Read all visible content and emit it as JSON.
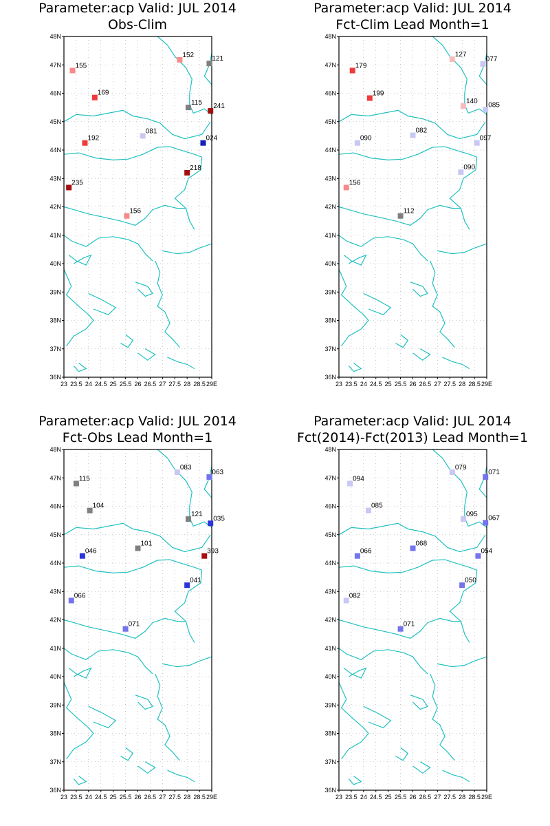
{
  "panels": [
    {
      "title_line1": "Parameter:acp Valid: JUL 2014",
      "title_line2": "Obs-Clim",
      "stations": [
        {
          "lon": 23.35,
          "lat": 46.8,
          "label": "155",
          "color": "#f88a8a"
        },
        {
          "lon": 24.25,
          "lat": 45.85,
          "label": "169",
          "color": "#ee3b3b"
        },
        {
          "lon": 23.85,
          "lat": 44.25,
          "label": "192",
          "color": "#ee3b3b"
        },
        {
          "lon": 23.2,
          "lat": 42.68,
          "label": "235",
          "color": "#a50e0e"
        },
        {
          "lon": 25.55,
          "lat": 41.68,
          "label": "156",
          "color": "#f88a8a"
        },
        {
          "lon": 26.2,
          "lat": 44.5,
          "label": "081",
          "color": "#c8c8f4"
        },
        {
          "lon": 27.7,
          "lat": 47.18,
          "label": "152",
          "color": "#f88a8a"
        },
        {
          "lon": 28.05,
          "lat": 45.5,
          "label": "115",
          "color": "#808080"
        },
        {
          "lon": 28.9,
          "lat": 47.05,
          "label": "121",
          "color": "#808080"
        },
        {
          "lon": 28.95,
          "lat": 45.38,
          "label": "241",
          "color": "#a50e0e"
        },
        {
          "lon": 28.65,
          "lat": 44.25,
          "label": "024",
          "color": "#1420b4"
        },
        {
          "lon": 28.0,
          "lat": 43.2,
          "label": "218",
          "color": "#a50e0e"
        }
      ]
    },
    {
      "title_line1": "Parameter:acp Valid: JUL 2014",
      "title_line2": "Fct-Clim Lead Month=1",
      "stations": [
        {
          "lon": 23.55,
          "lat": 46.8,
          "label": "179",
          "color": "#ee3b3b"
        },
        {
          "lon": 24.25,
          "lat": 45.83,
          "label": "199",
          "color": "#ee3b3b"
        },
        {
          "lon": 23.75,
          "lat": 44.25,
          "label": "090",
          "color": "#c8c8f4"
        },
        {
          "lon": 26.0,
          "lat": 44.52,
          "label": "082",
          "color": "#c8c8f4"
        },
        {
          "lon": 23.3,
          "lat": 42.68,
          "label": "156",
          "color": "#f88a8a"
        },
        {
          "lon": 25.5,
          "lat": 41.68,
          "label": "112",
          "color": "#808080"
        },
        {
          "lon": 27.6,
          "lat": 47.2,
          "label": "127",
          "color": "#f4bcbc"
        },
        {
          "lon": 28.05,
          "lat": 45.55,
          "label": "140",
          "color": "#f4bcbc"
        },
        {
          "lon": 28.85,
          "lat": 47.03,
          "label": "077",
          "color": "#c8c8f4"
        },
        {
          "lon": 28.95,
          "lat": 45.42,
          "label": "085",
          "color": "#c8c8f4"
        },
        {
          "lon": 28.6,
          "lat": 44.25,
          "label": "097",
          "color": "#c8c8f4"
        },
        {
          "lon": 27.95,
          "lat": 43.22,
          "label": "090",
          "color": "#c8c8f4"
        }
      ]
    },
    {
      "title_line1": "Parameter:acp Valid: JUL 2014",
      "title_line2": "Fct-Obs Lead Month=1",
      "stations": [
        {
          "lon": 23.5,
          "lat": 46.8,
          "label": "115",
          "color": "#808080"
        },
        {
          "lon": 24.05,
          "lat": 45.85,
          "label": "104",
          "color": "#808080"
        },
        {
          "lon": 23.75,
          "lat": 44.25,
          "label": "046",
          "color": "#2c36d8"
        },
        {
          "lon": 26.0,
          "lat": 44.52,
          "label": "101",
          "color": "#808080"
        },
        {
          "lon": 23.3,
          "lat": 42.68,
          "label": "066",
          "color": "#7474ec"
        },
        {
          "lon": 25.5,
          "lat": 41.68,
          "label": "071",
          "color": "#7474ec"
        },
        {
          "lon": 27.6,
          "lat": 47.2,
          "label": "083",
          "color": "#c8c8f4"
        },
        {
          "lon": 28.05,
          "lat": 45.55,
          "label": "121",
          "color": "#808080"
        },
        {
          "lon": 28.9,
          "lat": 47.03,
          "label": "063",
          "color": "#7474ec"
        },
        {
          "lon": 28.95,
          "lat": 45.4,
          "label": "035",
          "color": "#2c36d8"
        },
        {
          "lon": 28.7,
          "lat": 44.25,
          "label": "393",
          "color": "#a50e0e"
        },
        {
          "lon": 28.0,
          "lat": 43.22,
          "label": "041",
          "color": "#2c36d8"
        }
      ]
    },
    {
      "title_line1": "Parameter:acp Valid: JUL 2014",
      "title_line2": "Fct(2014)-Fct(2013) Lead Month=1",
      "stations": [
        {
          "lon": 23.45,
          "lat": 46.8,
          "label": "094",
          "color": "#c8c8f4"
        },
        {
          "lon": 24.2,
          "lat": 45.85,
          "label": "085",
          "color": "#c8c8f4"
        },
        {
          "lon": 23.75,
          "lat": 44.25,
          "label": "066",
          "color": "#7474ec"
        },
        {
          "lon": 26.0,
          "lat": 44.52,
          "label": "068",
          "color": "#7474ec"
        },
        {
          "lon": 23.3,
          "lat": 42.68,
          "label": "082",
          "color": "#c8c8f4"
        },
        {
          "lon": 25.5,
          "lat": 41.68,
          "label": "071",
          "color": "#7474ec"
        },
        {
          "lon": 27.6,
          "lat": 47.2,
          "label": "079",
          "color": "#c8c8f4"
        },
        {
          "lon": 28.05,
          "lat": 45.55,
          "label": "095",
          "color": "#c8c8f4"
        },
        {
          "lon": 28.95,
          "lat": 47.03,
          "label": "071",
          "color": "#7474ec"
        },
        {
          "lon": 28.95,
          "lat": 45.42,
          "label": "067",
          "color": "#7474ec"
        },
        {
          "lon": 28.65,
          "lat": 44.25,
          "label": "054",
          "color": "#7474ec"
        },
        {
          "lon": 28.0,
          "lat": 43.22,
          "label": "050",
          "color": "#7474ec"
        }
      ]
    }
  ],
  "axes": {
    "lat_ticks": [
      "36N",
      "37N",
      "38N",
      "39N",
      "40N",
      "41N",
      "42N",
      "43N",
      "44N",
      "45N",
      "46N",
      "47N",
      "48N"
    ],
    "lon_ticks": [
      "23",
      "23.5",
      "24",
      "24.5",
      "25",
      "25.5",
      "26",
      "26.5",
      "27",
      "27.5",
      "28",
      "28.5",
      "29E"
    ],
    "lat_range": [
      36,
      48
    ],
    "lon_range": [
      23,
      29
    ]
  },
  "colors": {
    "coastline": "#20c0c0",
    "grid": "#a0a0a0",
    "frame": "#000000"
  }
}
